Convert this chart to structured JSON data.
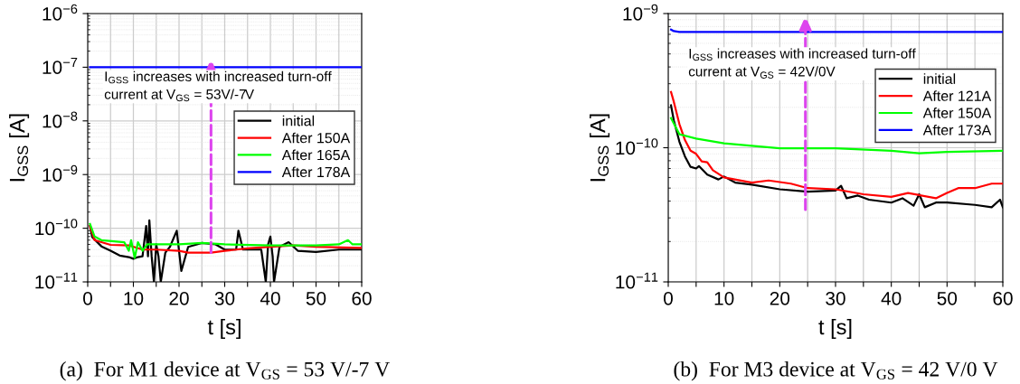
{
  "chart_data": [
    {
      "type": "line",
      "title": "(a)  For M1 device at V$_{GS}$ = 53 V/-7 V",
      "xlabel": "t [s]",
      "ylabel": "I$_{GSS}$ [A]",
      "log": "y",
      "grid": true,
      "legend": "right",
      "line_style": "solid",
      "xlim": [
        0,
        60
      ],
      "xticks": [
        0,
        {
          "value": 5,
          "label": null
        },
        10,
        {
          "value": 15,
          "label": null
        },
        20,
        {
          "value": 25,
          "label": null
        },
        30,
        {
          "value": 35,
          "label": null
        },
        40,
        {
          "value": 45,
          "label": null
        },
        50,
        {
          "value": 55,
          "label": null
        },
        60
      ],
      "ylim": [
        1e-11,
        1e-06
      ],
      "yticks": [
        {
          "value": 1e-11,
          "label": "10$^{−11}$"
        },
        {
          "value": 1e-10,
          "label": "10$^{−10}$"
        },
        {
          "value": 1e-09,
          "label": "10$^{−9}$"
        },
        {
          "value": 1e-08,
          "label": "10$^{−8}$"
        },
        {
          "value": 1e-07,
          "label": "10$^{−7}$"
        },
        {
          "value": 1e-06,
          "label": "10$^{−6}$"
        }
      ],
      "annotations": [
        "I$_{GSS}$ increases with increased turn-off\ncurrent at V$_{GS}$ = 53V/-7V"
      ],
      "series": [
        {
          "name": "initial",
          "color": "#000000",
          "x": [
            0.5,
            1,
            3,
            5,
            7,
            9,
            10,
            11,
            12,
            12.8,
            13.2,
            13.5,
            14,
            14.5,
            15,
            15.5,
            16,
            17,
            18,
            19.5,
            20.5,
            22,
            25,
            28,
            30,
            32.5,
            33,
            34,
            38,
            39,
            39.5,
            40,
            40.5,
            40.8,
            42,
            44,
            46,
            50,
            55,
            60
          ],
          "values": [
            1.1e-10,
            6.8e-11,
            4.6e-11,
            3.8e-11,
            3.1e-11,
            2.9e-11,
            2.7e-11,
            2.9e-11,
            3e-11,
            1.1e-10,
            3e-11,
            1.4e-10,
            3e-11,
            1e-11,
            5e-11,
            3e-11,
            1e-11,
            3.5e-11,
            4.5e-11,
            9e-11,
            1.6e-11,
            4.5e-11,
            5.3e-11,
            5e-11,
            4e-11,
            4e-11,
            9e-11,
            4e-11,
            4e-11,
            1e-11,
            5e-11,
            7e-11,
            3e-11,
            1e-11,
            4.5e-11,
            5.5e-11,
            3.8e-11,
            3.6e-11,
            4e-11,
            4e-11
          ]
        },
        {
          "name": "After 150A",
          "color": "#ff0000",
          "x": [
            0.5,
            1.5,
            5,
            9,
            12,
            15,
            20,
            22,
            27,
            30,
            35,
            40,
            45,
            50,
            60
          ],
          "values": [
            1.1e-10,
            6e-11,
            4.9e-11,
            4.8e-11,
            4e-11,
            4e-11,
            3.8e-11,
            3.5e-11,
            3.5e-11,
            3.8e-11,
            4.2e-11,
            4.5e-11,
            4.8e-11,
            4.5e-11,
            4.3e-11
          ]
        },
        {
          "name": "After 165A",
          "color": "#00ff00",
          "x": [
            0.5,
            1.5,
            3,
            8,
            9,
            9.5,
            10.3,
            11,
            12,
            13,
            20,
            25,
            30,
            40,
            50,
            55,
            57,
            58,
            60
          ],
          "values": [
            1.2e-10,
            7e-11,
            6e-11,
            5.5e-11,
            3.8e-11,
            6e-11,
            2.8e-11,
            5.5e-11,
            3.8e-11,
            5e-11,
            5e-11,
            5.3e-11,
            5e-11,
            4.8e-11,
            4.8e-11,
            5e-11,
            6e-11,
            5e-11,
            5e-11
          ]
        },
        {
          "name": "After 178A",
          "color": "#0000ff",
          "x": [
            0.5,
            60
          ],
          "values": [
            1e-07,
            1e-07
          ]
        }
      ]
    },
    {
      "type": "line",
      "title": "(b)  For M3 device at V$_{GS}$ = 42 V/0 V",
      "xlabel": "t [s]",
      "ylabel": "I$_{GSS}$ [A]",
      "log": "y",
      "grid": true,
      "legend": "top right",
      "line_style": "solid",
      "xlim": [
        0,
        60
      ],
      "xticks": [
        0,
        {
          "value": 5,
          "label": null
        },
        10,
        {
          "value": 15,
          "label": null
        },
        20,
        {
          "value": 25,
          "label": null
        },
        30,
        {
          "value": 35,
          "label": null
        },
        40,
        {
          "value": 45,
          "label": null
        },
        50,
        {
          "value": 55,
          "label": null
        },
        60
      ],
      "ylim": [
        1e-11,
        1e-09
      ],
      "yticks": [
        {
          "value": 1e-11,
          "label": "10$^{−11}$"
        },
        {
          "value": 1e-10,
          "label": "10$^{−10}$"
        },
        {
          "value": 1e-09,
          "label": "10$^{−9}$"
        }
      ],
      "annotations": [
        "I$_{GSS}$ increases with increased turn-off\ncurrent at V$_{GS}$ = 42V/0V"
      ],
      "series": [
        {
          "name": "initial",
          "color": "#000000",
          "x": [
            0.5,
            1,
            2,
            3,
            4,
            5,
            5.5,
            7,
            9,
            10,
            12,
            15,
            20,
            25,
            30,
            31,
            32,
            34,
            36,
            40,
            42,
            44,
            45,
            46,
            48,
            50,
            55,
            58,
            59.5,
            60
          ],
          "values": [
            2.07e-10,
            1.6e-10,
            1.11e-10,
            8.6e-11,
            7.2e-11,
            7e-11,
            7.3e-11,
            6.3e-11,
            5.8e-11,
            6.1e-11,
            5.5e-11,
            5.3e-11,
            4.9e-11,
            4.7e-11,
            4.8e-11,
            5.2e-11,
            4.2e-11,
            4.4e-11,
            4.1e-11,
            3.9e-11,
            4.2e-11,
            3.7e-11,
            4.5e-11,
            3.6e-11,
            3.9e-11,
            3.9e-11,
            3.75e-11,
            3.6e-11,
            4.1e-11,
            3.6e-11
          ]
        },
        {
          "name": "After 121A",
          "color": "#ff0000",
          "x": [
            0.5,
            1,
            2,
            3,
            4,
            5,
            6,
            7,
            8,
            10,
            15,
            18,
            22,
            25,
            30,
            35,
            40,
            43,
            48,
            50,
            52,
            55,
            58,
            60
          ],
          "values": [
            2.6e-10,
            2.2e-10,
            1.5e-10,
            1.14e-10,
            9.5e-11,
            9e-11,
            7.9e-11,
            7.8e-11,
            6.8e-11,
            6e-11,
            5.5e-11,
            5.7e-11,
            5.4e-11,
            5e-11,
            4.9e-11,
            4.5e-11,
            4.3e-11,
            4.6e-11,
            4.2e-11,
            4.6e-11,
            5e-11,
            5e-11,
            5.4e-11,
            5.4e-11
          ]
        },
        {
          "name": "After 150A",
          "color": "#00ff00",
          "x": [
            0.5,
            2,
            5,
            10,
            20,
            30,
            40,
            45,
            50,
            60
          ],
          "values": [
            1.66e-10,
            1.26e-10,
            1.17e-10,
            1.08e-10,
            9.9e-11,
            9.9e-11,
            9.5e-11,
            9.1e-11,
            9.3e-11,
            9.5e-11
          ]
        },
        {
          "name": "After 173A",
          "color": "#0000ff",
          "x": [
            0.5,
            1,
            2,
            10,
            30,
            50,
            60
          ],
          "values": [
            7.6e-10,
            7.4e-10,
            7.3e-10,
            7.3e-10,
            7.3e-10,
            7.3e-10,
            7.3e-10
          ]
        }
      ]
    }
  ]
}
